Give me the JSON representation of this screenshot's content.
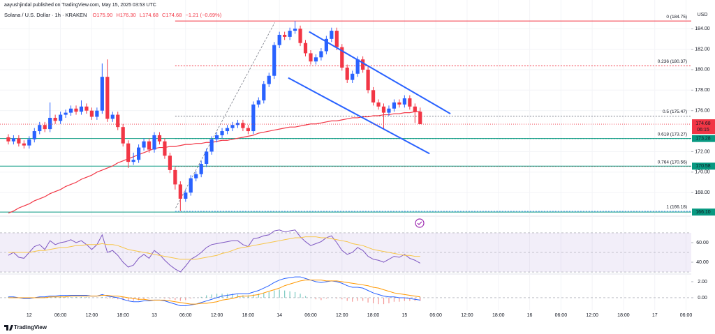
{
  "header": {
    "publisher": "aayushjindal published on TradingView.com, May 15, 2025 03:53 UTC",
    "symbol": "Solana / U.S. Dollar · 1h · KRAKEN",
    "open": "O175.90",
    "high": "H176.30",
    "low": "L174.68",
    "close": "C174.68",
    "change": "−1.21 (−0.69%)",
    "currency": "USD",
    "brand": "TradingView"
  },
  "chart_data": [
    {
      "type": "candlestick",
      "grid": true,
      "xlim": [
        -1.6,
        131
      ],
      "xticks": [
        {
          "value": 4,
          "label": "12"
        },
        {
          "value": 10,
          "label": "06:00"
        },
        {
          "value": 16,
          "label": "12:00"
        },
        {
          "value": 22,
          "label": "18:00"
        },
        {
          "value": 28,
          "label": "13"
        },
        {
          "value": 34,
          "label": "06:00"
        },
        {
          "value": 40,
          "label": "12:00"
        },
        {
          "value": 46,
          "label": "18:00"
        },
        {
          "value": 52,
          "label": "14"
        },
        {
          "value": 58,
          "label": "06:00"
        },
        {
          "value": 64,
          "label": "12:00"
        },
        {
          "value": 70,
          "label": "18:00"
        },
        {
          "value": 76,
          "label": "15"
        },
        {
          "value": 82,
          "label": "06:00"
        },
        {
          "value": 88,
          "label": "12:00"
        },
        {
          "value": 94,
          "label": "18:00"
        },
        {
          "value": 100,
          "label": "16"
        },
        {
          "value": 106,
          "label": "06:00"
        },
        {
          "value": 112,
          "label": "12:00"
        },
        {
          "value": 118,
          "label": "18:00"
        },
        {
          "value": 124,
          "label": "17"
        },
        {
          "value": 130,
          "label": "06:00"
        }
      ],
      "ylim": [
        165.7,
        186.8
      ],
      "yticks": [
        {
          "value": 184,
          "label": "184.00"
        },
        {
          "value": 182,
          "label": "182.00"
        },
        {
          "value": 180,
          "label": "180.00"
        },
        {
          "value": 178,
          "label": "178.00"
        },
        {
          "value": 176,
          "label": "176.00"
        },
        {
          "value": 172,
          "label": "172.00"
        },
        {
          "value": 170,
          "label": "170.00"
        },
        {
          "value": 168,
          "label": "168.00"
        }
      ],
      "up_color": "#2962ff",
      "down_color": "#f23645",
      "open": [
        173.4,
        173.0,
        173.3,
        172.8,
        172.6,
        173.2,
        174.0,
        174.6,
        174.2,
        175.3,
        175.0,
        175.6,
        175.8,
        176.2,
        175.9,
        176.4,
        176.0,
        175.4,
        176.0,
        179.3,
        175.2,
        175.6,
        174.4,
        172.8,
        171.0,
        171.2,
        172.4,
        173.0,
        172.2,
        173.6,
        173.0,
        171.6,
        170.2,
        168.8,
        167.4,
        168.0,
        169.4,
        169.8,
        170.8,
        172.0,
        173.2,
        173.6,
        174.0,
        174.3,
        174.6,
        174.8,
        174.3,
        174.0,
        176.6,
        177.0,
        178.6,
        179.4,
        182.4,
        183.4,
        183.2,
        183.8,
        184.0,
        182.6,
        181.6,
        180.8,
        181.2,
        181.8,
        183.0,
        183.8,
        182.2,
        180.2,
        179.0,
        179.6,
        181.0,
        180.0,
        178.0,
        176.8,
        176.4,
        175.8,
        176.2,
        176.8,
        176.6,
        177.2,
        176.4,
        175.9
      ],
      "high": [
        173.7,
        173.6,
        173.6,
        173.1,
        173.5,
        174.3,
        174.9,
        174.9,
        176.8,
        175.6,
        175.9,
        176.1,
        176.5,
        176.5,
        177.0,
        176.7,
        176.3,
        176.3,
        180.6,
        181.0,
        175.9,
        175.9,
        174.7,
        173.1,
        171.9,
        172.7,
        173.3,
        173.3,
        173.9,
        173.9,
        173.3,
        171.9,
        170.5,
        169.1,
        168.3,
        169.7,
        170.1,
        171.1,
        172.3,
        173.5,
        173.9,
        174.3,
        174.6,
        174.9,
        175.1,
        175.1,
        174.6,
        176.9,
        177.3,
        178.9,
        179.7,
        182.7,
        183.7,
        183.7,
        184.1,
        184.75,
        184.3,
        182.9,
        181.9,
        181.5,
        182.1,
        183.3,
        184.1,
        184.1,
        182.5,
        180.5,
        179.9,
        181.3,
        181.3,
        180.3,
        178.3,
        177.1,
        176.7,
        176.5,
        177.1,
        177.1,
        177.5,
        177.5,
        176.7,
        176.3
      ],
      "low": [
        172.7,
        172.7,
        172.5,
        172.3,
        172.3,
        172.9,
        173.7,
        173.9,
        173.9,
        174.7,
        174.7,
        175.3,
        175.5,
        175.6,
        175.6,
        175.7,
        175.1,
        175.1,
        175.7,
        174.9,
        174.9,
        174.1,
        172.5,
        170.4,
        170.7,
        170.9,
        172.1,
        171.9,
        171.9,
        172.7,
        171.3,
        169.9,
        168.3,
        166.2,
        167.1,
        167.7,
        169.1,
        169.5,
        170.5,
        171.7,
        172.9,
        173.3,
        173.7,
        174.0,
        174.3,
        174.0,
        173.7,
        173.7,
        176.3,
        176.7,
        178.3,
        179.1,
        182.1,
        182.9,
        182.9,
        183.5,
        182.3,
        181.3,
        180.5,
        180.5,
        180.9,
        181.5,
        182.7,
        181.9,
        179.9,
        178.7,
        178.7,
        179.3,
        179.7,
        177.7,
        176.5,
        176.1,
        174.2,
        175.5,
        175.9,
        176.3,
        176.3,
        176.1,
        174.8,
        174.68
      ],
      "close": [
        173.0,
        173.3,
        172.8,
        172.6,
        173.2,
        174.0,
        174.6,
        174.2,
        175.3,
        175.0,
        175.6,
        175.8,
        176.2,
        175.9,
        176.4,
        176.0,
        175.4,
        176.0,
        179.3,
        175.2,
        175.6,
        174.4,
        172.8,
        171.0,
        171.2,
        172.4,
        173.0,
        172.2,
        173.6,
        173.0,
        171.6,
        170.2,
        168.8,
        167.4,
        168.0,
        169.4,
        169.8,
        170.8,
        172.0,
        173.2,
        173.6,
        174.0,
        174.3,
        174.6,
        174.8,
        174.3,
        174.0,
        176.6,
        177.0,
        178.6,
        179.4,
        182.4,
        183.4,
        183.2,
        183.8,
        184.0,
        182.6,
        181.6,
        180.8,
        181.2,
        181.8,
        183.0,
        183.8,
        182.2,
        180.2,
        179.0,
        179.6,
        181.0,
        180.0,
        178.0,
        176.8,
        176.4,
        175.8,
        176.2,
        176.8,
        176.6,
        177.2,
        176.4,
        175.9,
        174.68
      ],
      "moving_average": {
        "color": "#f23645",
        "values": [
          166.0,
          166.2,
          166.5,
          166.7,
          166.9,
          167.2,
          167.4,
          167.6,
          167.9,
          168.1,
          168.3,
          168.6,
          168.8,
          169.0,
          169.3,
          169.5,
          169.7,
          170.0,
          170.2,
          170.4,
          170.6,
          170.9,
          171.1,
          171.3,
          171.5,
          171.7,
          171.9,
          172.1,
          172.3,
          172.4,
          172.4,
          172.5,
          172.5,
          172.6,
          172.7,
          172.7,
          172.8,
          172.8,
          172.9,
          172.9,
          173.0,
          173.1,
          173.1,
          173.2,
          173.3,
          173.4,
          173.5,
          173.6,
          173.8,
          173.9,
          174.0,
          174.1,
          174.2,
          174.3,
          174.4,
          174.4,
          174.5,
          174.6,
          174.7,
          174.7,
          174.8,
          174.9,
          175.0,
          175.0,
          175.1,
          175.2,
          175.3,
          175.3,
          175.4,
          175.4,
          175.5,
          175.5,
          175.6,
          175.6,
          175.7,
          175.7,
          175.8,
          175.8,
          175.9,
          175.9
        ]
      },
      "fibonacci_start": 32,
      "fibonacci": [
        {
          "label": "0 (184.75)",
          "value": 184.75,
          "color": "#f23645",
          "label_color": "#787b86"
        },
        {
          "label": "0.236 (180.37)",
          "value": 180.37,
          "color": "#f23645",
          "label_color": "#f23645"
        },
        {
          "label": "0.5 (175.47)",
          "value": 175.47,
          "color": "#787b86",
          "label_color": "#131722"
        },
        {
          "label": "0.618 (173.27)",
          "value": 173.27,
          "color": "#089981",
          "label_color": "#089981"
        },
        {
          "label": "0.764 (170.56)",
          "value": 170.56,
          "color": "#f23645",
          "label_color": "#f23645"
        },
        {
          "label": "1 (166.18)",
          "value": 166.18,
          "color": "#5b9cf6",
          "label_color": "#5b9cf6"
        }
      ],
      "fib_connector": {
        "x": [
          32.1,
          51.1
        ],
        "y": [
          166.5,
          184.6
        ]
      },
      "horizontal_lines": [
        {
          "value": 173.28,
          "label": "173.28",
          "color": "#089981"
        },
        {
          "value": 170.58,
          "label": "170.58",
          "color": "#089981"
        },
        {
          "value": 166.1,
          "label": "166.10",
          "color": "#089981"
        }
      ],
      "channel_color": "#2962ff",
      "channel": [
        {
          "x": [
            57.7,
            84.8
          ],
          "y": [
            183.7,
            175.7
          ]
        },
        {
          "x": [
            53.7,
            80.8
          ],
          "y": [
            179.2,
            171.8
          ]
        }
      ],
      "last_price": {
        "value": 174.68,
        "label": "174.68",
        "countdown": "06:15",
        "color": "#f23645"
      }
    },
    {
      "type": "line",
      "ylim": [
        28.6,
        87.1
      ],
      "yticks": [
        {
          "value": 60,
          "label": "60.00"
        },
        {
          "value": 40,
          "label": "40.00"
        }
      ],
      "band": [
        30,
        70
      ],
      "band_color": "#7e57c2",
      "levels": [
        70,
        50,
        30
      ],
      "series": [
        {
          "color": "#7e57c2",
          "values": [
            47,
            50,
            45,
            44,
            50,
            56,
            58,
            53,
            62,
            58,
            60,
            61,
            63,
            60,
            62,
            58,
            53,
            58,
            68,
            50,
            52,
            47,
            40,
            35,
            37,
            44,
            48,
            44,
            52,
            48,
            42,
            37,
            33,
            30,
            36,
            43,
            46,
            50,
            55,
            58,
            59,
            60,
            61,
            62,
            62,
            58,
            56,
            64,
            65,
            67,
            68,
            72,
            73,
            71,
            72,
            73,
            66,
            61,
            57,
            59,
            61,
            65,
            67,
            60,
            52,
            48,
            50,
            55,
            52,
            46,
            43,
            42,
            40,
            43,
            46,
            45,
            48,
            44,
            42,
            39
          ]
        },
        {
          "color": "#f7c548",
          "values": [
            50,
            50,
            50,
            50,
            50,
            51,
            52,
            52,
            53,
            54,
            55,
            55,
            56,
            57,
            57,
            58,
            58,
            58,
            59,
            58,
            58,
            57,
            55,
            53,
            52,
            51,
            50,
            49,
            48,
            47,
            46,
            45,
            44,
            43,
            43,
            43,
            43,
            44,
            45,
            46,
            47,
            49,
            50,
            52,
            54,
            55,
            56,
            57,
            58,
            59,
            60,
            61,
            62,
            63,
            64,
            65,
            65,
            66,
            66,
            66,
            65,
            65,
            64,
            63,
            62,
            61,
            59,
            58,
            57,
            55,
            53,
            52,
            51,
            50,
            49,
            48,
            47,
            47,
            46,
            46
          ]
        }
      ]
    },
    {
      "type": "line",
      "ylim": [
        -1.57,
        2.78
      ],
      "yticks": [
        {
          "value": 2,
          "label": "2.00"
        },
        {
          "value": 0,
          "label": "0.00"
        }
      ],
      "levels": [
        0
      ],
      "histogram": {
        "up_color": "#26a69a",
        "down_color": "#ef5350",
        "values": [
          0.1,
          0.1,
          0,
          -0.1,
          -0.1,
          0,
          0.1,
          0.1,
          0.1,
          0.1,
          0.2,
          0.2,
          0.1,
          0.1,
          0.1,
          0.1,
          0,
          0,
          0.1,
          -0.1,
          -0.1,
          -0.2,
          -0.3,
          -0.4,
          -0.4,
          -0.3,
          -0.2,
          -0.1,
          0,
          0,
          -0.1,
          -0.2,
          -0.3,
          -0.4,
          -0.3,
          -0.1,
          0,
          0.1,
          0.3,
          0.4,
          0.5,
          0.5,
          0.5,
          0.5,
          0.4,
          0.3,
          0.3,
          0.4,
          0.5,
          0.6,
          0.7,
          0.9,
          1.0,
          0.9,
          0.8,
          0.7,
          0.5,
          0.2,
          0,
          -0.2,
          -0.3,
          -0.1,
          0,
          -0.1,
          -0.2,
          -0.4,
          -0.5,
          -0.4,
          -0.4,
          -0.6,
          -0.7,
          -0.8,
          -0.8,
          -0.7,
          -0.5,
          -0.5,
          -0.4,
          -0.4,
          -0.4,
          -0.4
        ]
      },
      "series": [
        {
          "color": "#2962ff",
          "values": [
            0.1,
            0.1,
            0.0,
            -0.1,
            -0.1,
            0.0,
            0.1,
            0.1,
            0.2,
            0.2,
            0.3,
            0.3,
            0.3,
            0.3,
            0.3,
            0.3,
            0.2,
            0.2,
            0.4,
            0.2,
            0.1,
            0.0,
            -0.2,
            -0.4,
            -0.5,
            -0.5,
            -0.4,
            -0.4,
            -0.3,
            -0.3,
            -0.4,
            -0.6,
            -0.8,
            -1.0,
            -1.0,
            -0.9,
            -0.8,
            -0.6,
            -0.4,
            -0.2,
            0.0,
            0.2,
            0.3,
            0.4,
            0.5,
            0.5,
            0.5,
            0.7,
            0.9,
            1.2,
            1.5,
            1.9,
            2.2,
            2.4,
            2.5,
            2.6,
            2.6,
            2.4,
            2.2,
            2.0,
            1.9,
            2.0,
            2.1,
            2.0,
            1.8,
            1.5,
            1.3,
            1.3,
            1.2,
            0.9,
            0.6,
            0.4,
            0.2,
            0.1,
            0.1,
            0.0,
            0.0,
            -0.1,
            -0.2,
            -0.3
          ]
        },
        {
          "color": "#ff9800",
          "values": [
            0,
            0,
            0,
            0,
            0,
            0,
            0,
            0,
            0.1,
            0.1,
            0.1,
            0.1,
            0.2,
            0.2,
            0.2,
            0.2,
            0.2,
            0.2,
            0.3,
            0.3,
            0.2,
            0.2,
            0.1,
            0.0,
            -0.1,
            -0.2,
            -0.2,
            -0.3,
            -0.3,
            -0.3,
            -0.3,
            -0.4,
            -0.5,
            -0.6,
            -0.7,
            -0.8,
            -0.8,
            -0.7,
            -0.7,
            -0.6,
            -0.5,
            -0.3,
            -0.2,
            -0.1,
            0.1,
            0.2,
            0.2,
            0.3,
            0.4,
            0.6,
            0.8,
            1.0,
            1.2,
            1.5,
            1.7,
            1.9,
            2.1,
            2.2,
            2.2,
            2.2,
            2.2,
            2.1,
            2.1,
            2.1,
            2.0,
            1.9,
            1.8,
            1.7,
            1.6,
            1.5,
            1.3,
            1.2,
            1.0,
            0.8,
            0.6,
            0.5,
            0.4,
            0.3,
            0.2,
            0.1
          ]
        }
      ]
    }
  ]
}
